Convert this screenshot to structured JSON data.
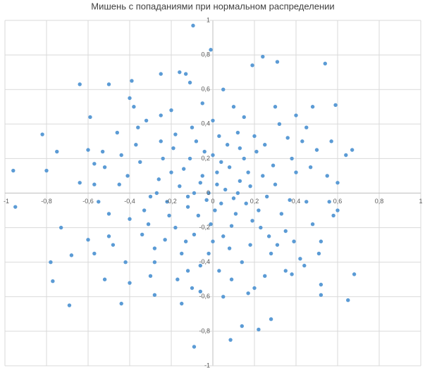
{
  "chart_data": {
    "type": "scatter",
    "title": "Мишень с попаданиями при нормальном распределении",
    "color": "#5b9bd5",
    "grid": true,
    "xlim": [
      -1,
      1
    ],
    "ylim": [
      -1,
      1
    ],
    "xticks": [
      -1,
      {
        "value": -0.8,
        "label": "-0,8"
      },
      {
        "value": -0.6,
        "label": "-0,6"
      },
      {
        "value": -0.4,
        "label": "-0,4"
      },
      {
        "value": -0.2,
        "label": "-0,2"
      },
      0,
      {
        "value": 0.2,
        "label": "0,2"
      },
      {
        "value": 0.4,
        "label": "0,4"
      },
      {
        "value": 0.6,
        "label": "0,6"
      },
      {
        "value": 0.8,
        "label": "0,8"
      },
      1
    ],
    "yticks": [
      -1,
      {
        "value": -0.8,
        "label": "-0,8"
      },
      {
        "value": -0.6,
        "label": "-0,6"
      },
      {
        "value": -0.4,
        "label": "-0,4"
      },
      {
        "value": -0.2,
        "label": "-0,2"
      },
      0,
      {
        "value": 0.2,
        "label": "0,2"
      },
      {
        "value": 0.4,
        "label": "0,4"
      },
      {
        "value": 0.6,
        "label": "0,6"
      },
      {
        "value": 0.8,
        "label": "0,8"
      },
      1
    ],
    "x": [
      -0.095,
      -0.01,
      0.24,
      0.31,
      0.54,
      0.19,
      -0.16,
      -0.13,
      -0.11,
      -0.64,
      -0.5,
      -0.25,
      -0.39,
      -0.4,
      0.59,
      0.48,
      -0.59,
      -0.82,
      -0.75,
      -0.96,
      -0.8,
      -0.95,
      -0.64,
      -0.73,
      -0.78,
      -0.68,
      -0.77,
      -0.69,
      -0.44,
      -0.15,
      -0.09,
      0.085,
      0.14,
      0.22,
      0.28,
      0.68,
      0.65,
      0.52,
      0.52,
      0.67,
      0.64,
      0.6,
      0.58,
      0.56,
      0.51,
      0.38,
      0.17,
      0.05,
      -0.06,
      -0.28,
      -0.52,
      -0.6,
      -0.57,
      -0.57,
      -0.53,
      0.02,
      -0.05,
      0.1,
      -0.12,
      0.08,
      -0.2,
      0.15,
      0.22,
      -0.18,
      0.3,
      -0.3,
      0.05,
      -0.08,
      0.25,
      -0.25,
      0.35,
      -0.35,
      0.12,
      -0.02,
      0.4,
      -0.4,
      0.18,
      -0.15,
      0.28,
      -0.28,
      0.45,
      -0.45,
      0,
      0.03,
      0.5,
      -0.5,
      0.32,
      -0.32,
      0.42,
      -0.42,
      0.06,
      -0.03,
      0.01,
      -0.09,
      0.13,
      -0.07,
      0.04,
      -0.16,
      0.19,
      -0.22,
      0.09,
      -0.11,
      0.24,
      -0.26,
      0.16,
      -0.04,
      0.33,
      -0.33,
      0.07,
      -0.19,
      0.27,
      -0.23,
      0.2,
      -0.13,
      0.38,
      -0.37,
      0.14,
      -0.06,
      0.36,
      -0.44,
      0.48,
      -0.48,
      0.1,
      -0.2,
      0.25,
      -0.3,
      0.55,
      -0.55,
      0.05,
      -0.1,
      0.4,
      -0.38,
      0.02,
      -0.01,
      0.11,
      -0.14,
      0.17,
      -0.21,
      0.26,
      -0.27,
      0,
      0.08,
      -0.1,
      0.21,
      -0.24,
      0.31,
      -0.34,
      0.43,
      -0.46,
      0.52,
      -0.52,
      0.15,
      -0.05,
      0.2,
      -0.17,
      0.35,
      0.45,
      -0.4,
      0.6,
      -0.6,
      0.03,
      -0.02,
      0.04,
      -0.06,
      0.12,
      -0.12,
      0,
      0.18,
      -0.09,
      0.29,
      -0.31,
      0.23,
      -0.18,
      0.37,
      -0.41,
      0.13,
      -0.28,
      0.39,
      -0.36,
      0.47,
      -0.5,
      0.09,
      -0.25,
      0.3,
      -0.12,
      0.57,
      -0.57,
      0.44
    ],
    "values": [
      0.97,
      0.83,
      0.79,
      0.76,
      0.75,
      0.74,
      0.7,
      0.69,
      0.64,
      0.63,
      0.63,
      0.69,
      0.65,
      0.55,
      0.51,
      0.5,
      0.44,
      0.34,
      0.24,
      0.13,
      0.13,
      -0.08,
      0.06,
      -0.2,
      -0.4,
      -0.36,
      -0.51,
      -0.65,
      -0.64,
      -0.64,
      -0.89,
      -0.85,
      -0.77,
      -0.79,
      -0.73,
      -0.47,
      -0.62,
      -0.53,
      -0.59,
      0.25,
      0.22,
      0.06,
      -0.13,
      -0.05,
      -0.35,
      -0.47,
      -0.58,
      -0.6,
      -0.57,
      -0.59,
      -0.5,
      -0.27,
      0.05,
      0.17,
      0.24,
      0.05,
      0.1,
      -0.03,
      -0.08,
      0.15,
      0.12,
      0.2,
      -0.1,
      -0.2,
      0.05,
      -0.02,
      -0.25,
      0.3,
      0.28,
      0.3,
      -0.22,
      0.18,
      0.35,
      -0.35,
      0.12,
      -0.15,
      -0.3,
      -0.35,
      -0.35,
      -0.32,
      -0.05,
      0.05,
      0.42,
      -0.45,
      0.25,
      -0.25,
      0.4,
      0.42,
      -0.38,
      -0.4,
      0.02,
      -0.04,
      -0.1,
      0,
      0.07,
      -0.13,
      0.18,
      0.04,
      -0.16,
      -0.05,
      -0.19,
      0.2,
      0.1,
      0.08,
      -0.06,
      0.24,
      -0.12,
      -0.1,
      0.28,
      0.26,
      -0.25,
      -0.27,
      0.33,
      -0.28,
      0.2,
      0.28,
      -0.4,
      -0.42,
      0.32,
      0.22,
      -0.18,
      -0.3,
      0.5,
      0.48,
      -0.48,
      -0.48,
      0.1,
      -0.05,
      0.6,
      -0.55,
      0.45,
      0.5,
      0.12,
      -0.18,
      -0.12,
      0.14,
      0.12,
      -0.13,
      -0.02,
      0,
      0.22,
      -0.32,
      0.38,
      0.24,
      0.2,
      -0.3,
      -0.24,
      0.3,
      0.35,
      -0.28,
      0.15,
      0.44,
      0.52,
      -0.55,
      -0.5,
      -0.45,
      0.38,
      -0.52,
      -0.1,
      0.25,
      0.33,
      0,
      -0.06,
      0.06,
      0,
      -0.02,
      -0.28,
      0.04,
      -0.24,
      0.16,
      -0.18,
      -0.2,
      0.34,
      -0.04,
      0.1,
      0.26,
      -0.4,
      -0.28,
      0.38,
      0.15,
      -0.12,
      -0.5,
      0.45,
      0.5,
      -0.45,
      0.3,
      -0.35,
      -0.42
    ]
  }
}
